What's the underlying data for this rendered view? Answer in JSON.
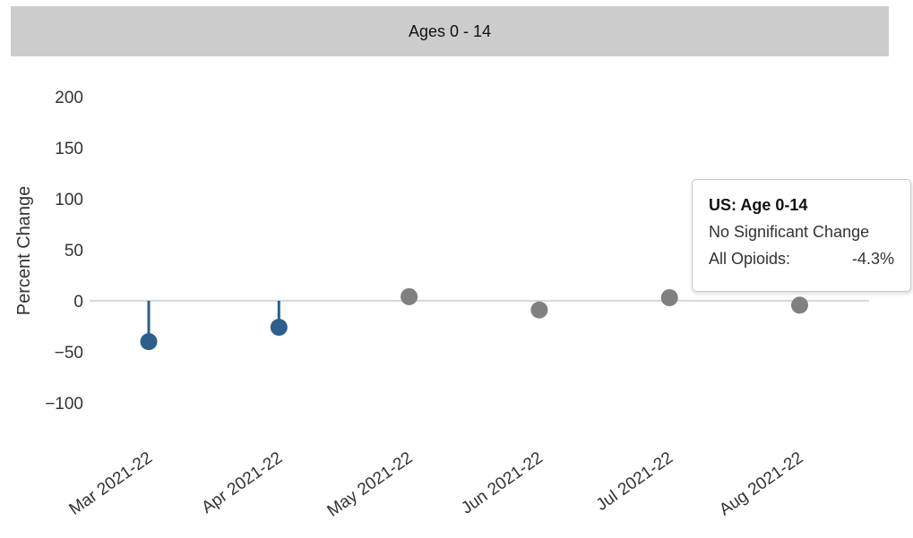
{
  "header": {
    "title": "Ages 0 - 14"
  },
  "chart_data": {
    "type": "scatter",
    "title": "Ages 0 - 14",
    "xlabel": "",
    "ylabel": "Percent Change",
    "categories": [
      "Mar 2021-22",
      "Apr 2021-22",
      "May 2021-22",
      "Jun 2021-22",
      "Jul 2021-22",
      "Aug 2021-22"
    ],
    "values": [
      -40,
      -26,
      4,
      -9,
      3,
      -4.3
    ],
    "significant": [
      true,
      true,
      false,
      false,
      false,
      false
    ],
    "yticks": [
      -100,
      -50,
      0,
      50,
      100,
      150,
      200
    ],
    "ytick_labels": [
      "−100",
      "−50",
      "0",
      "50",
      "100",
      "150",
      "200"
    ],
    "ylim": [
      -100,
      200
    ],
    "grid": false,
    "colors": {
      "significant": "#2e5e8a",
      "not_significant": "#808080",
      "zero_line": "#cccccc"
    }
  },
  "tooltip": {
    "title": "US: Age 0-14",
    "status": "No Significant Change",
    "label": "All Opioids:",
    "value": "-4.3%"
  }
}
